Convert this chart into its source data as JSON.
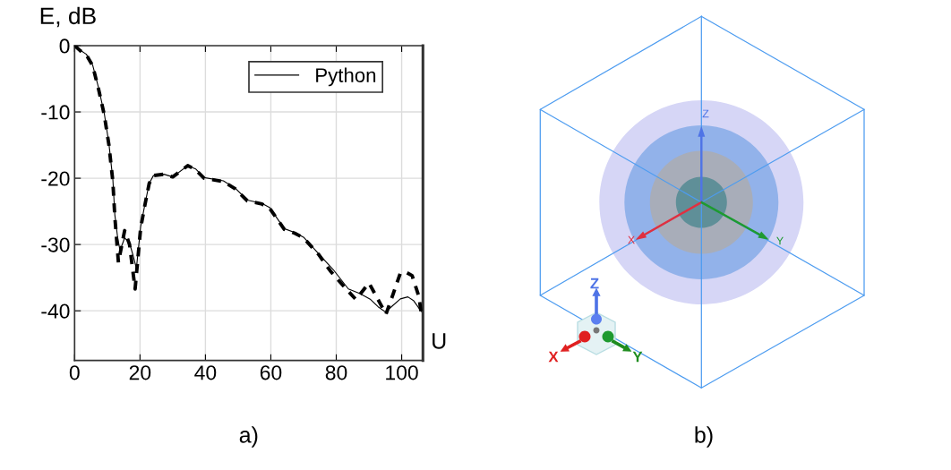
{
  "chart_data": [
    {
      "type": "line",
      "xlabel": "U",
      "ylabel": "E, dB",
      "xlim": [
        0,
        106.5
      ],
      "ylim": [
        -47.5,
        0
      ],
      "xticks": [
        0,
        20,
        40,
        60,
        80,
        100
      ],
      "yticks": [
        0,
        -10,
        -20,
        -30,
        -40
      ],
      "grid": true,
      "legend": "top right",
      "annotations": [
        "a)"
      ],
      "series": [
        {
          "name": "Python",
          "color": "#000000",
          "line_style": "solid",
          "x": [
            0,
            1.8,
            3.6,
            5.5,
            7.3,
            9.1,
            10.5,
            11.7,
            12.3,
            13.2,
            13.9,
            15.3,
            16.8,
            17.8,
            18.9,
            20.2,
            21.4,
            22.8,
            24.1,
            27.3,
            30.0,
            34.6,
            37.0,
            39.6,
            45.5,
            49.1,
            52.8,
            57.3,
            59.6,
            64.1,
            67.3,
            70.0,
            74.6,
            79.1,
            83.7,
            87.3,
            90.5,
            92.8,
            95.1,
            97.3,
            99.6,
            101.9,
            103.7,
            106.0
          ],
          "values": [
            0,
            -0.7,
            -1.3,
            -2.9,
            -6.3,
            -10.3,
            -14.8,
            -20.2,
            -25.5,
            -29.1,
            -30.9,
            -29.0,
            -29.8,
            -31.5,
            -33.6,
            -27.3,
            -24.2,
            -20.8,
            -19.6,
            -19.4,
            -19.8,
            -18.1,
            -18.6,
            -19.9,
            -20.4,
            -21.5,
            -23.3,
            -23.8,
            -24.4,
            -27.6,
            -28.2,
            -28.9,
            -31.4,
            -33.8,
            -36.7,
            -37.4,
            -38.3,
            -39.4,
            -40.2,
            -39.2,
            -38.2,
            -37.9,
            -38.5,
            -40.1
          ]
        },
        {
          "color": "#000000",
          "line_style": "dashed",
          "x": [
            0,
            1.8,
            3.6,
            5.5,
            7.3,
            9.1,
            10.5,
            11.7,
            12.3,
            13.4,
            15.3,
            16.8,
            18.5,
            20.2,
            21.4,
            22.8,
            24.1,
            27.3,
            30.0,
            34.6,
            37.0,
            39.6,
            45.5,
            49.1,
            52.8,
            57.3,
            59.6,
            64.1,
            67.3,
            70.0,
            74.6,
            78.2,
            82.3,
            86.0,
            90.0,
            93.0,
            95.2,
            97.3,
            99.6,
            101.4,
            103.2,
            105.3,
            106.0
          ],
          "values": [
            0,
            -0.8,
            -1.4,
            -3.0,
            -6.5,
            -10.5,
            -15.0,
            -20.5,
            -25.8,
            -32.7,
            -27.9,
            -30.0,
            -36.7,
            -27.5,
            -24.3,
            -20.8,
            -19.6,
            -19.4,
            -19.8,
            -18.1,
            -18.7,
            -20.0,
            -20.5,
            -21.6,
            -23.4,
            -23.9,
            -24.5,
            -27.7,
            -28.3,
            -29.0,
            -31.5,
            -34.0,
            -36.3,
            -38.3,
            -35.8,
            -38.5,
            -40.5,
            -37.6,
            -34.3,
            -34.2,
            -34.7,
            -37.9,
            -40.5
          ]
        }
      ]
    },
    {
      "type": "other",
      "annotations": [
        "b)",
        "Z",
        "X",
        "Y",
        "Z",
        "X",
        "Y"
      ]
    }
  ]
}
